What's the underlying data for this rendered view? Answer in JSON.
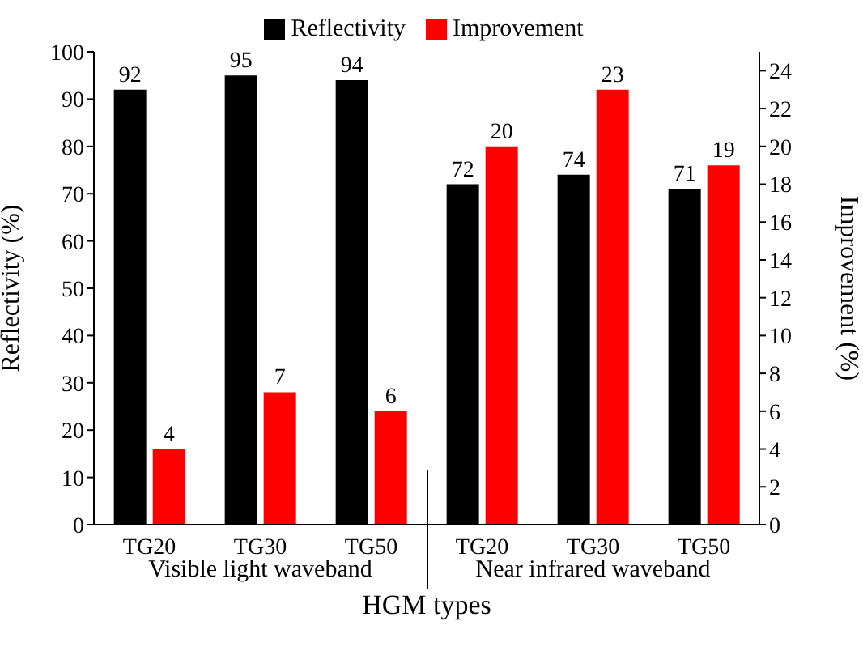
{
  "chart_data": {
    "type": "bar",
    "xlabel": "HGM types",
    "ylabel": "Reflectivity (%)",
    "y2label": "Improvement (%)",
    "categories": [
      "TG20",
      "TG30",
      "TG50",
      "TG20",
      "TG30",
      "TG50"
    ],
    "series": [
      {
        "name": "Reflectivity",
        "color": "#000000",
        "values": [
          92,
          95,
          94,
          72,
          74,
          71
        ]
      },
      {
        "name": "Improvement",
        "color": "#ff0000",
        "values": [
          4,
          7,
          6,
          20,
          23,
          19
        ],
        "axis": "y2"
      }
    ],
    "ylim": [
      0,
      100
    ],
    "yticks": [
      0,
      10,
      20,
      30,
      40,
      50,
      60,
      70,
      80,
      90,
      100
    ],
    "y2lim": [
      0,
      25
    ],
    "y2ticks": [
      0,
      2,
      4,
      6,
      8,
      10,
      12,
      14,
      16,
      18,
      20,
      22,
      24
    ],
    "annotations": [
      "Visible light waveband",
      "Near infrared waveband"
    ],
    "data_labels": true,
    "grid": false,
    "legend": "top"
  }
}
